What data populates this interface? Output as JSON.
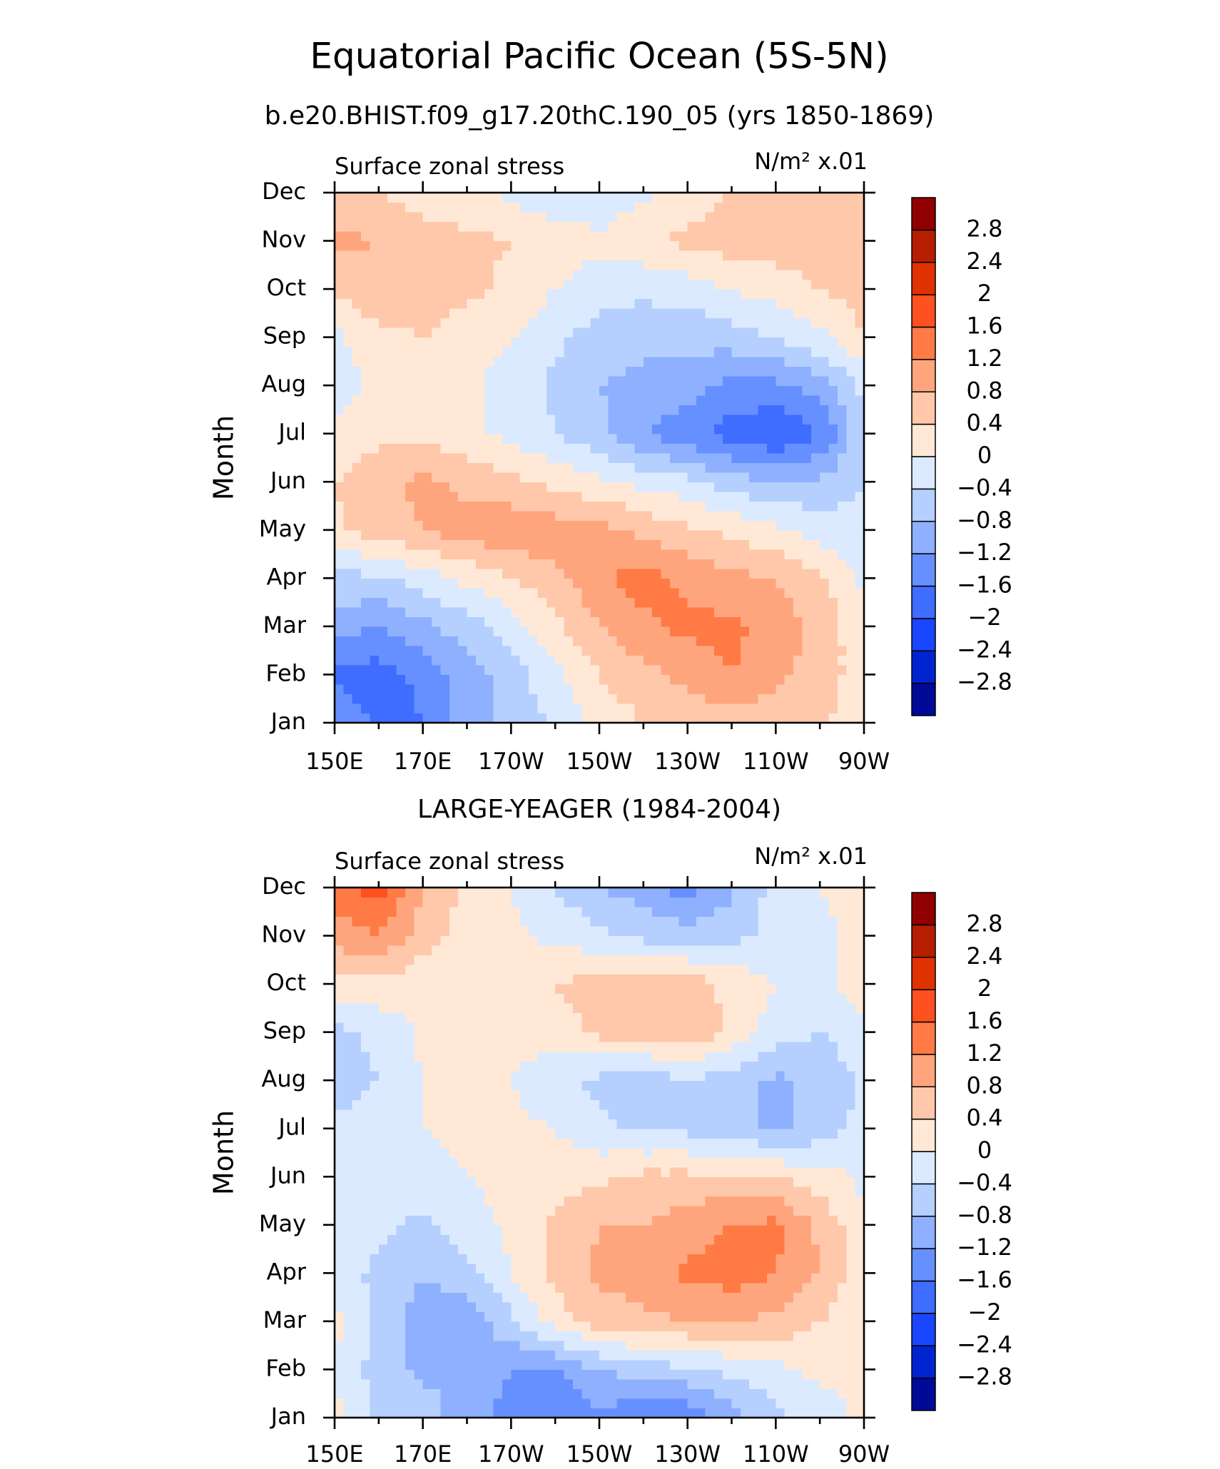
{
  "title": "Equatorial Pacific Ocean (5S-5N)",
  "chart_data": [
    {
      "type": "contour",
      "title": "b.e20.BHIST.f09_g17.20thC.190_05 (yrs 1850-1869)",
      "left_label": "Surface zonal stress",
      "right_label": "N/m² x.01",
      "ylabel": "Month",
      "x": [
        150,
        160,
        170,
        180,
        190,
        200,
        210,
        220,
        230,
        240,
        250,
        260,
        270
      ],
      "xlim": [
        150,
        270
      ],
      "xticks": [
        {
          "value": 150,
          "label": "150E"
        },
        {
          "value": 170,
          "label": "170E"
        },
        {
          "value": 190,
          "label": "170W"
        },
        {
          "value": 210,
          "label": "150W"
        },
        {
          "value": 230,
          "label": "130W"
        },
        {
          "value": 250,
          "label": "110W"
        },
        {
          "value": 270,
          "label": "90W"
        }
      ],
      "categories": [
        "Jan",
        "Feb",
        "Mar",
        "Apr",
        "May",
        "Jun",
        "Jul",
        "Aug",
        "Sep",
        "Oct",
        "Nov",
        "Dec"
      ],
      "levels": [
        {
          "value": -2.8,
          "label": "−2.8"
        },
        {
          "value": -2.4,
          "label": "−2.4"
        },
        {
          "value": -2,
          "label": "−2"
        },
        {
          "value": -1.6,
          "label": "−1.6"
        },
        {
          "value": -1.2,
          "label": "−1.2"
        },
        {
          "value": -0.8,
          "label": "−0.8"
        },
        {
          "value": -0.4,
          "label": "−0.4"
        },
        0,
        0.4,
        0.8,
        1.2,
        1.6,
        2,
        2.4,
        2.8
      ],
      "colors": [
        "#000a96",
        "#0024d0",
        "#1a46ff",
        "#3f6dff",
        "#6690ff",
        "#8eb0ff",
        "#b5cfff",
        "#dbeaff",
        "#ffe8d6",
        "#ffc8aa",
        "#ffa57d",
        "#ff7a45",
        "#ff5020",
        "#e03200",
        "#b51e00",
        "#900000"
      ],
      "z": [
        [
          -1.3,
          -1.7,
          -1.6,
          -1.0,
          -0.7,
          -0.3,
          0.1,
          0.4,
          0.5,
          0.6,
          0.6,
          0.5,
          0.1
        ],
        [
          -1.7,
          -1.8,
          -1.5,
          -1.0,
          -0.6,
          -0.1,
          0.4,
          0.7,
          0.9,
          1.2,
          0.9,
          0.6,
          0.2
        ],
        [
          -1.0,
          -1.2,
          -0.9,
          -0.6,
          -0.2,
          0.3,
          0.8,
          1.1,
          1.3,
          1.3,
          1.0,
          0.7,
          0.1
        ],
        [
          -0.5,
          -0.5,
          -0.2,
          0.1,
          0.4,
          0.7,
          1.1,
          1.4,
          1.1,
          0.9,
          0.8,
          0.5,
          -0.1
        ],
        [
          0.3,
          0.6,
          0.8,
          1.0,
          1.1,
          1.0,
          0.9,
          0.7,
          0.5,
          0.3,
          0.1,
          -0.2,
          -0.3
        ],
        [
          0.4,
          0.7,
          0.9,
          0.7,
          0.5,
          0.3,
          0.1,
          -0.1,
          -0.3,
          -0.6,
          -0.8,
          -0.7,
          -0.4
        ],
        [
          0.1,
          0.3,
          0.3,
          0.1,
          -0.1,
          -0.4,
          -0.7,
          -1.2,
          -1.5,
          -1.8,
          -2.0,
          -1.6,
          -0.5
        ],
        [
          -0.2,
          0.1,
          0.2,
          0.1,
          -0.2,
          -0.5,
          -0.8,
          -0.9,
          -1.0,
          -1.3,
          -1.3,
          -1.0,
          -0.3
        ],
        [
          -0.1,
          0.3,
          0.4,
          0.2,
          0.0,
          -0.3,
          -0.6,
          -0.7,
          -0.7,
          -0.6,
          -0.4,
          -0.1,
          0.4
        ],
        [
          0.5,
          0.7,
          0.6,
          0.5,
          0.3,
          0.0,
          -0.2,
          -0.3,
          -0.2,
          0.0,
          0.2,
          0.4,
          0.6
        ],
        [
          0.9,
          0.8,
          0.6,
          0.5,
          0.4,
          0.2,
          0.1,
          0.3,
          0.5,
          0.6,
          0.6,
          0.6,
          0.6
        ],
        [
          0.5,
          0.4,
          0.2,
          0.1,
          -0.1,
          -0.3,
          -0.3,
          -0.1,
          0.2,
          0.4,
          0.5,
          0.5,
          0.4
        ]
      ]
    },
    {
      "type": "contour",
      "title": "LARGE-YEAGER (1984-2004)",
      "left_label": "Surface zonal stress",
      "right_label": "N/m² x.01",
      "ylabel": "Month",
      "x": [
        150,
        160,
        170,
        180,
        190,
        200,
        210,
        220,
        230,
        240,
        250,
        260,
        270
      ],
      "xlim": [
        150,
        270
      ],
      "xticks": [
        {
          "value": 150,
          "label": "150E"
        },
        {
          "value": 170,
          "label": "170E"
        },
        {
          "value": 190,
          "label": "170W"
        },
        {
          "value": 210,
          "label": "150W"
        },
        {
          "value": 230,
          "label": "130W"
        },
        {
          "value": 250,
          "label": "110W"
        },
        {
          "value": 270,
          "label": "90W"
        }
      ],
      "categories": [
        "Jan",
        "Feb",
        "Mar",
        "Apr",
        "May",
        "Jun",
        "Jul",
        "Aug",
        "Sep",
        "Oct",
        "Nov",
        "Dec"
      ],
      "levels": [
        {
          "value": -2.8,
          "label": "−2.8"
        },
        {
          "value": -2.4,
          "label": "−2.4"
        },
        {
          "value": -2,
          "label": "−2"
        },
        {
          "value": -1.6,
          "label": "−1.6"
        },
        {
          "value": -1.2,
          "label": "−1.2"
        },
        {
          "value": -0.8,
          "label": "−0.8"
        },
        {
          "value": -0.4,
          "label": "−0.4"
        },
        0,
        0.4,
        0.8,
        1.2,
        1.6,
        2,
        2.4,
        2.8
      ],
      "colors": [
        "#000a96",
        "#0024d0",
        "#1a46ff",
        "#3f6dff",
        "#6690ff",
        "#8eb0ff",
        "#b5cfff",
        "#dbeaff",
        "#ffe8d6",
        "#ffc8aa",
        "#ffa57d",
        "#ff7a45",
        "#ff5020",
        "#e03200",
        "#b51e00",
        "#900000"
      ],
      "z": [
        [
          0.1,
          -0.5,
          -0.6,
          -1.0,
          -1.4,
          -1.6,
          -1.3,
          -1.6,
          -1.5,
          -1.0,
          -0.5,
          -0.2,
          0.1
        ],
        [
          0.0,
          -0.6,
          -0.9,
          -0.8,
          -1.2,
          -1.2,
          -0.8,
          -0.6,
          -0.5,
          -0.3,
          -0.1,
          0.1,
          0.1
        ],
        [
          0.1,
          -0.5,
          -1.0,
          -1.1,
          -0.5,
          0.2,
          0.6,
          0.7,
          0.8,
          0.8,
          0.7,
          0.4,
          0.1
        ],
        [
          -0.2,
          -0.5,
          -0.8,
          -0.5,
          0.0,
          0.5,
          0.9,
          1.0,
          1.3,
          1.4,
          1.2,
          0.8,
          0.1
        ],
        [
          -0.1,
          -0.3,
          -0.5,
          -0.2,
          0.1,
          0.5,
          0.8,
          0.8,
          1.0,
          1.2,
          1.3,
          0.7,
          0.1
        ],
        [
          -0.2,
          -0.2,
          -0.2,
          0.0,
          0.1,
          0.2,
          0.3,
          0.5,
          0.5,
          0.5,
          0.4,
          0.2,
          -0.1
        ],
        [
          -0.3,
          -0.1,
          0.0,
          0.1,
          0.1,
          0.0,
          -0.3,
          -0.5,
          -0.5,
          -0.6,
          -0.9,
          -0.6,
          -0.3
        ],
        [
          -0.7,
          -0.4,
          0.0,
          0.1,
          0.0,
          -0.3,
          -0.5,
          -0.7,
          -0.4,
          -0.6,
          -0.9,
          -0.7,
          -0.3
        ],
        [
          -0.5,
          -0.3,
          0.1,
          0.2,
          0.2,
          0.2,
          0.5,
          0.6,
          0.7,
          0.3,
          -0.2,
          -0.4,
          -0.2
        ],
        [
          0.2,
          0.3,
          0.1,
          0.1,
          0.2,
          0.4,
          0.6,
          0.5,
          0.6,
          0.3,
          0.0,
          -0.2,
          0.3
        ],
        [
          1.0,
          1.2,
          0.6,
          0.2,
          0.1,
          -0.1,
          -0.3,
          -0.5,
          -0.6,
          -0.5,
          -0.3,
          -0.1,
          0.1
        ],
        [
          1.4,
          1.8,
          0.8,
          0.3,
          0.0,
          -0.4,
          -0.8,
          -1.0,
          -1.4,
          -0.9,
          -0.2,
          0.0,
          0.2
        ]
      ]
    }
  ]
}
